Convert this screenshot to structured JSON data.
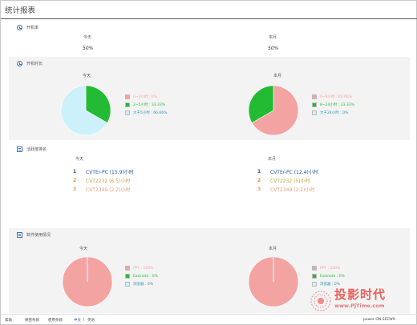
{
  "page": {
    "title": "统计报表"
  },
  "colors": {
    "red": "#f4a3a3",
    "green": "#22bb33",
    "cyan": "#ccf1fb",
    "blue": "#2255a4",
    "gold": "#c0a33a",
    "orange": "#e49a7c"
  },
  "boot_rate": {
    "heading": "开机率",
    "today": {
      "label": "今天",
      "value": "50%"
    },
    "month": {
      "label": "本月",
      "value": "50%"
    }
  },
  "boot_time": {
    "heading": "开机时长",
    "today": {
      "label": "今天",
      "legend": [
        {
          "label": "0~2小时 : 0%",
          "color": "#f4a3a3",
          "value": 0
        },
        {
          "label": "2~5小时 : 33.33%",
          "color": "#22bb33",
          "value": 33.33
        },
        {
          "label": "大于5小时 : 66.66%",
          "color": "#ccf1fb",
          "value": 66.66
        }
      ]
    },
    "month": {
      "label": "本月",
      "legend": [
        {
          "label": "0~8小时 : 66.66%",
          "color": "#f4a3a3",
          "value": 66.66
        },
        {
          "label": "8~24小时 : 33.33%",
          "color": "#22bb33",
          "value": 33.33
        },
        {
          "label": "大于24小时 : 0%",
          "color": "#ccf1fb",
          "value": 0
        }
      ]
    }
  },
  "usage_rank": {
    "heading": "活跃度排名",
    "today": {
      "label": "今天",
      "items": [
        {
          "num": "1",
          "text": "CVTEr-PC (15.9)小时",
          "color": "#2255a4"
        },
        {
          "num": "2",
          "text": "CVT2232 (6.5)小时",
          "color": "#c0a33a"
        },
        {
          "num": "3",
          "text": "CVT2349 (2.2)小时",
          "color": "#e49a7c"
        }
      ]
    },
    "month": {
      "label": "本月",
      "items": [
        {
          "num": "1",
          "text": "CVTEr-PC (12.4)小时",
          "color": "#2255a4"
        },
        {
          "num": "2",
          "text": "CVT2232 (5)小时",
          "color": "#c0a33a"
        },
        {
          "num": "3",
          "text": "CVT2349 (2.2)小时",
          "color": "#e49a7c"
        }
      ]
    }
  },
  "software_use": {
    "heading": "软件使用情况",
    "today": {
      "label": "今天",
      "legend": [
        {
          "label": "PPT : 100%",
          "color": "#f4a3a3",
          "value": 100
        },
        {
          "label": "Easinote : 0%",
          "color": "#22bb33",
          "value": 0
        },
        {
          "label": "浏览器 : 0%",
          "color": "#ccf1fb",
          "value": 0
        }
      ]
    },
    "month": {
      "label": "本月",
      "legend": [
        {
          "label": "PPT : 100%",
          "color": "#f4a3a3",
          "value": 100
        },
        {
          "label": "Easinote : 0%",
          "color": "#22bb33",
          "value": 0
        },
        {
          "label": "浏览器 : 0%",
          "color": "#ccf1fb",
          "value": 0
        }
      ]
    }
  },
  "footer": {
    "help": "帮助",
    "privacy": "保密条款",
    "terms": "使用条款",
    "lang_cn": "中文",
    "lang_sep": "|",
    "lang_en": "英语",
    "powered": "power ON SEEWO"
  },
  "watermark": {
    "cn": "投影时代",
    "url": "www.PjTime.com"
  }
}
